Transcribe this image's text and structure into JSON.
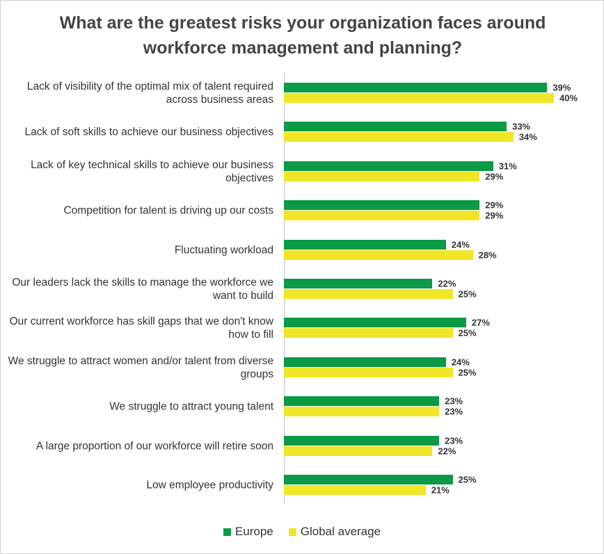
{
  "chart_data": {
    "type": "hbar",
    "title": "What are the greatest risks your organization faces around workforce management and planning?",
    "categories": [
      "Lack of visibility of the optimal mix of talent required across business areas",
      "Lack of soft skills to achieve our business objectives",
      "Lack of key technical skills to achieve our business objectives",
      "Competition for talent is driving up our costs",
      "Fluctuating workload",
      "Our leaders lack the skills to manage the workforce we want to build",
      "Our current workforce has skill gaps that we don't know how to fill",
      "We struggle to attract women and/or talent from diverse groups",
      "We struggle to attract young talent",
      "A large proportion of our workforce will retire soon",
      "Low employee productivity"
    ],
    "series": [
      {
        "name": "Europe",
        "color": "#0b9a46",
        "values": [
          39,
          33,
          31,
          29,
          24,
          22,
          27,
          24,
          23,
          23,
          25
        ],
        "value_labels": [
          "39%",
          "33%",
          "31%",
          "29%",
          "24%",
          "22%",
          "27%",
          "24%",
          "23%",
          "23%",
          "25%"
        ]
      },
      {
        "name": "Global average",
        "color": "#f0e627",
        "values": [
          40,
          34,
          29,
          29,
          28,
          25,
          25,
          25,
          23,
          22,
          21
        ],
        "value_labels": [
          "40%",
          "34%",
          "29%",
          "29%",
          "28%",
          "25%",
          "25%",
          "25%",
          "23%",
          "22%",
          "21%"
        ]
      }
    ],
    "legend": "bottom"
  }
}
